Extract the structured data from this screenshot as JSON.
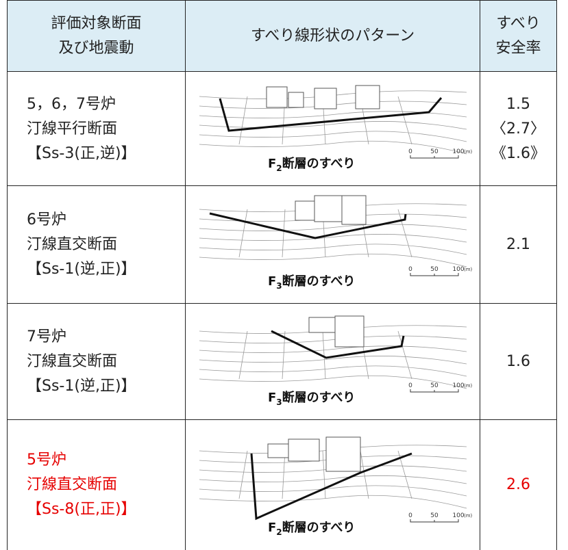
{
  "header": {
    "section": [
      "評価対象断面",
      "及び地震動"
    ],
    "pattern": "すべり線形状のパターン",
    "safety": [
      "すべり",
      "安全率"
    ]
  },
  "rows": [
    {
      "section": [
        "5，6，7号炉",
        "汀線平行断面",
        "【Ss-3(正,逆)】"
      ],
      "caption": {
        "main": "F",
        "sub": "2",
        "rest": "断層のすべり"
      },
      "scale": [
        "0",
        "50",
        "100",
        "(m)"
      ],
      "safety": [
        "1.5",
        "〈2.7〉",
        "《1.6》"
      ],
      "color": "#222222"
    },
    {
      "section": [
        "6号炉",
        "汀線直交断面",
        "【Ss-1(逆,正)】"
      ],
      "caption": {
        "main": "F",
        "sub": "3",
        "rest": "断層のすべり"
      },
      "scale": [
        "0",
        "50",
        "100",
        "(m)"
      ],
      "safety": [
        "2.1"
      ],
      "color": "#222222"
    },
    {
      "section": [
        "7号炉",
        "汀線直交断面",
        "【Ss-1(逆,正)】"
      ],
      "caption": {
        "main": "F",
        "sub": "3",
        "rest": "断層のすべり"
      },
      "scale": [
        "0",
        "50",
        "100",
        "(m)"
      ],
      "safety": [
        "1.6"
      ],
      "color": "#222222"
    },
    {
      "section": [
        "5号炉",
        "汀線直交断面",
        "【Ss-8(正,正)】"
      ],
      "caption": {
        "main": "F",
        "sub": "2",
        "rest": "断層のすべり"
      },
      "scale": [
        "0",
        "50",
        "100",
        "(m)"
      ],
      "safety": [
        "2.6"
      ],
      "color": "#e60000"
    }
  ]
}
